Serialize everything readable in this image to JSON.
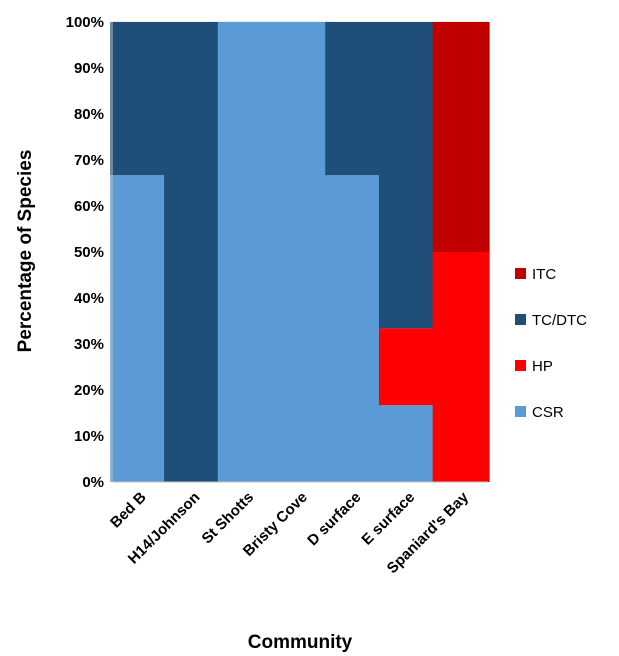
{
  "chart_data": {
    "type": "bar",
    "stacked": true,
    "percent": true,
    "categories": [
      "Bed B",
      "H14/Johnson",
      "St Shotts",
      "Bristy Cove",
      "D surface",
      "E surface",
      "Spaniard's Bay"
    ],
    "series": [
      {
        "name": "CSR",
        "color": "#5b9bd5",
        "values": [
          66.7,
          0,
          100,
          100,
          66.7,
          16.7,
          0
        ]
      },
      {
        "name": "HP",
        "color": "#ff0000",
        "values": [
          0,
          0,
          0,
          0,
          0,
          16.7,
          50
        ]
      },
      {
        "name": "TC/DTC",
        "color": "#1f4e79",
        "values": [
          33.3,
          100,
          0,
          0,
          33.3,
          66.6,
          0
        ]
      },
      {
        "name": "ITC",
        "color": "#c00000",
        "values": [
          0,
          0,
          0,
          0,
          0,
          0,
          50
        ]
      }
    ],
    "legend_order": [
      "ITC",
      "TC/DTC",
      "HP",
      "CSR"
    ],
    "yticks": [
      "0%",
      "10%",
      "20%",
      "30%",
      "40%",
      "50%",
      "60%",
      "70%",
      "80%",
      "90%",
      "100%"
    ],
    "ylim": [
      0,
      100
    ],
    "xlabel": "Community",
    "ylabel": "Percentage of Species",
    "legend_position": "right",
    "grid": true,
    "gridColor": "#d9d9d9"
  }
}
